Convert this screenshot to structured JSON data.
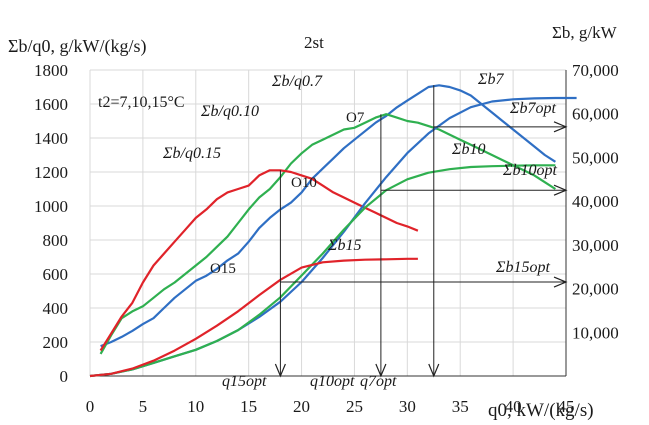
{
  "chart_data": {
    "type": "line",
    "title": "2st",
    "xlabel": "q0, kW/(kg/s)",
    "ylabel_left": "Σb/q0, g/kW/(kg/s)",
    "ylabel_right": "Σb, g/kW",
    "annotation_temp": "t2=7,10,15°C",
    "xlim": [
      0,
      45
    ],
    "ylim_left": [
      0,
      1800
    ],
    "ylim_right": [
      0,
      70000
    ],
    "x_ticks": [
      "0",
      "5",
      "10",
      "15",
      "20",
      "25",
      "30",
      "35",
      "40",
      "45"
    ],
    "y_ticks_left": [
      "0",
      "200",
      "400",
      "600",
      "800",
      "1000",
      "1200",
      "1400",
      "1600",
      "1800"
    ],
    "y_ticks_right": [
      "10,000",
      "20,000",
      "30,000",
      "40,000",
      "50,000",
      "60,000",
      "70,000"
    ],
    "grid": true,
    "colors": {
      "t7": "#2f6fc4",
      "t10": "#2fb050",
      "t15": "#e0232a",
      "grid": "#d9d9d9",
      "axis": "#333333"
    },
    "series": [
      {
        "name": "Σb/q0.7",
        "axis": "left",
        "color": "#2f6fc4",
        "x": [
          1,
          2,
          3,
          4,
          5,
          6,
          7,
          8,
          9,
          10,
          11,
          12,
          13,
          14,
          15,
          16,
          17,
          18,
          19,
          20,
          21,
          22,
          23,
          24,
          25,
          26,
          27,
          28,
          29,
          30,
          31,
          32,
          33,
          34,
          35,
          36,
          37,
          38,
          39,
          40,
          41,
          42,
          43,
          44
        ],
        "y": [
          176,
          200,
          230,
          265,
          305,
          340,
          400,
          460,
          510,
          560,
          590,
          630,
          680,
          720,
          790,
          870,
          930,
          980,
          1020,
          1080,
          1160,
          1220,
          1280,
          1340,
          1390,
          1440,
          1490,
          1530,
          1580,
          1620,
          1660,
          1700,
          1710,
          1700,
          1680,
          1650,
          1600,
          1550,
          1500,
          1450,
          1400,
          1350,
          1300,
          1260
        ]
      },
      {
        "name": "Σb/q0.10",
        "axis": "left",
        "color": "#2fb050",
        "x": [
          1,
          2,
          3,
          4,
          5,
          6,
          7,
          8,
          9,
          10,
          11,
          12,
          13,
          14,
          15,
          16,
          17,
          18,
          19,
          20,
          21,
          22,
          23,
          24,
          25,
          26,
          27,
          28,
          29,
          30,
          31,
          32,
          33,
          34,
          35,
          36,
          37,
          38,
          39,
          40,
          41,
          42,
          43,
          44
        ],
        "y": [
          130,
          240,
          340,
          380,
          410,
          460,
          510,
          550,
          600,
          650,
          700,
          760,
          820,
          900,
          980,
          1050,
          1100,
          1170,
          1250,
          1310,
          1360,
          1390,
          1420,
          1450,
          1460,
          1490,
          1520,
          1540,
          1520,
          1500,
          1490,
          1470,
          1450,
          1420,
          1390,
          1360,
          1330,
          1300,
          1270,
          1240,
          1210,
          1180,
          1140,
          1100
        ]
      },
      {
        "name": "Σb/q0.15",
        "axis": "left",
        "color": "#e0232a",
        "x": [
          1,
          2,
          3,
          4,
          5,
          6,
          7,
          8,
          9,
          10,
          11,
          12,
          13,
          14,
          15,
          16,
          17,
          18,
          19,
          20,
          21,
          22,
          23,
          24,
          25,
          26,
          27,
          28,
          29,
          30,
          31
        ],
        "y": [
          150,
          250,
          350,
          430,
          550,
          650,
          720,
          790,
          860,
          930,
          980,
          1040,
          1080,
          1100,
          1120,
          1180,
          1210,
          1210,
          1200,
          1180,
          1160,
          1120,
          1080,
          1050,
          1020,
          990,
          960,
          930,
          900,
          880,
          855
        ]
      },
      {
        "name": "Σb7",
        "axis": "right",
        "color": "#2f6fc4",
        "x": [
          0,
          2,
          4,
          6,
          8,
          10,
          12,
          14,
          16,
          18,
          20,
          22,
          24,
          26,
          28,
          30,
          32,
          34,
          36,
          38,
          40,
          42,
          44,
          46
        ],
        "y": [
          0,
          500,
          1500,
          3000,
          4500,
          6000,
          8000,
          10500,
          13500,
          17000,
          21500,
          27000,
          33000,
          39500,
          45500,
          51000,
          55500,
          59000,
          61500,
          62800,
          63300,
          63500,
          63600,
          63600
        ]
      },
      {
        "name": "Σb10",
        "axis": "right",
        "color": "#2fb050",
        "x": [
          0,
          2,
          4,
          6,
          8,
          10,
          12,
          14,
          16,
          18,
          20,
          22,
          24,
          26,
          28,
          30,
          32,
          34,
          36,
          38,
          40,
          42,
          44
        ],
        "y": [
          0,
          500,
          1500,
          3000,
          4500,
          6000,
          8000,
          10500,
          14000,
          18000,
          23000,
          28000,
          33500,
          38500,
          42500,
          45000,
          46500,
          47300,
          47800,
          48000,
          48100,
          48200,
          48200
        ]
      },
      {
        "name": "Σb15",
        "axis": "right",
        "color": "#e0232a",
        "x": [
          0,
          2,
          4,
          6,
          8,
          10,
          12,
          14,
          16,
          18,
          20,
          22,
          24,
          26,
          28,
          30,
          31
        ],
        "y": [
          0,
          500,
          1700,
          3500,
          5800,
          8500,
          11500,
          14800,
          18500,
          22000,
          24800,
          26000,
          26400,
          26600,
          26700,
          26800,
          26800
        ]
      }
    ],
    "labels": {
      "s7": "Σb/q0.7",
      "s10": "Σb/q0.10",
      "s15": "Σb/q0.15",
      "b7": "Σb7",
      "b10": "Σb10",
      "b15": "Σb15",
      "b7opt": "Σb7opt",
      "b10opt": "Σb10opt",
      "b15opt": "Σb15opt",
      "o7": "O7",
      "o10": "O10",
      "o15": "O15",
      "q7opt": "q7opt",
      "q10opt": "q10opt",
      "q15opt": "q15opt"
    },
    "optimum_points": [
      {
        "name": "O7",
        "x": 32.5,
        "y_left": 1460
      },
      {
        "name": "O10",
        "x": 27.5,
        "y_left": 1100
      },
      {
        "name": "O15",
        "x": 18,
        "y_left": 560
      }
    ]
  }
}
